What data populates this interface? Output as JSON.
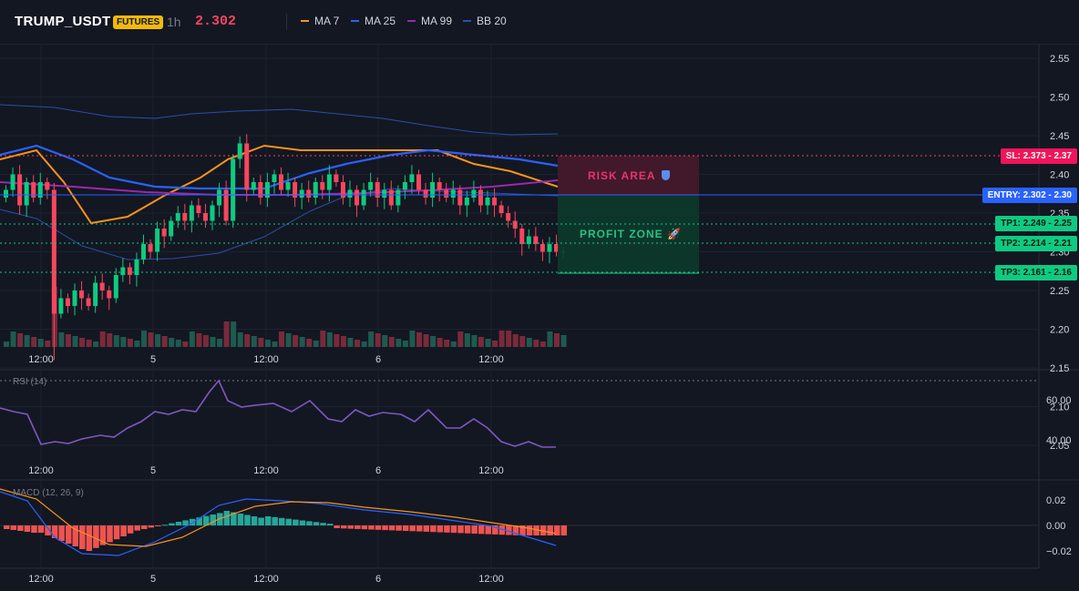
{
  "header": {
    "symbol": "TRUMP_USDT",
    "badge": "FUTURES",
    "timeframe": "1h",
    "last_price": "2.302",
    "indicators": [
      {
        "label": "MA 7",
        "color": "#f7931a"
      },
      {
        "label": "MA 25",
        "color": "#2962ff"
      },
      {
        "label": "MA 99",
        "color": "#9c27b0"
      },
      {
        "label": "BB 20",
        "color": "#2a4fa8"
      }
    ]
  },
  "price_axis": {
    "ticks": [
      "2.55",
      "2.50",
      "2.45",
      "2.40",
      "2.35",
      "2.30",
      "2.25",
      "2.20",
      "2.15",
      "2.10",
      "2.05"
    ]
  },
  "time_axis": {
    "labels": [
      "12:00",
      "5",
      "12:00",
      "6",
      "12:00"
    ]
  },
  "levels": {
    "sl": "SL: 2.373 - 2.37",
    "entry": "ENTRY: 2.302 - 2.30",
    "tp1": "TP1: 2.249 - 2.25",
    "tp2": "TP2: 2.214 - 2.21",
    "tp3": "TP3: 2.161 - 2.16"
  },
  "zones": {
    "risk": "RISK AREA",
    "profit": "PROFIT ZONE"
  },
  "colors": {
    "bg": "#131722",
    "up": "#26a69a",
    "upBright": "#0ecb81",
    "down": "#f6465d",
    "ma7": "#f7931a",
    "ma25": "#2962ff",
    "ma99": "#9c27b0",
    "bb": "#2a4fa8",
    "rsi": "#7e57c2"
  },
  "rsi": {
    "title": "RSI (14)",
    "ticks": [
      "60.00",
      "40.00"
    ]
  },
  "macd": {
    "title": "MACD (12, 26, 9)",
    "ticks": [
      "0.02",
      "0.00",
      "−0.02"
    ]
  }
}
